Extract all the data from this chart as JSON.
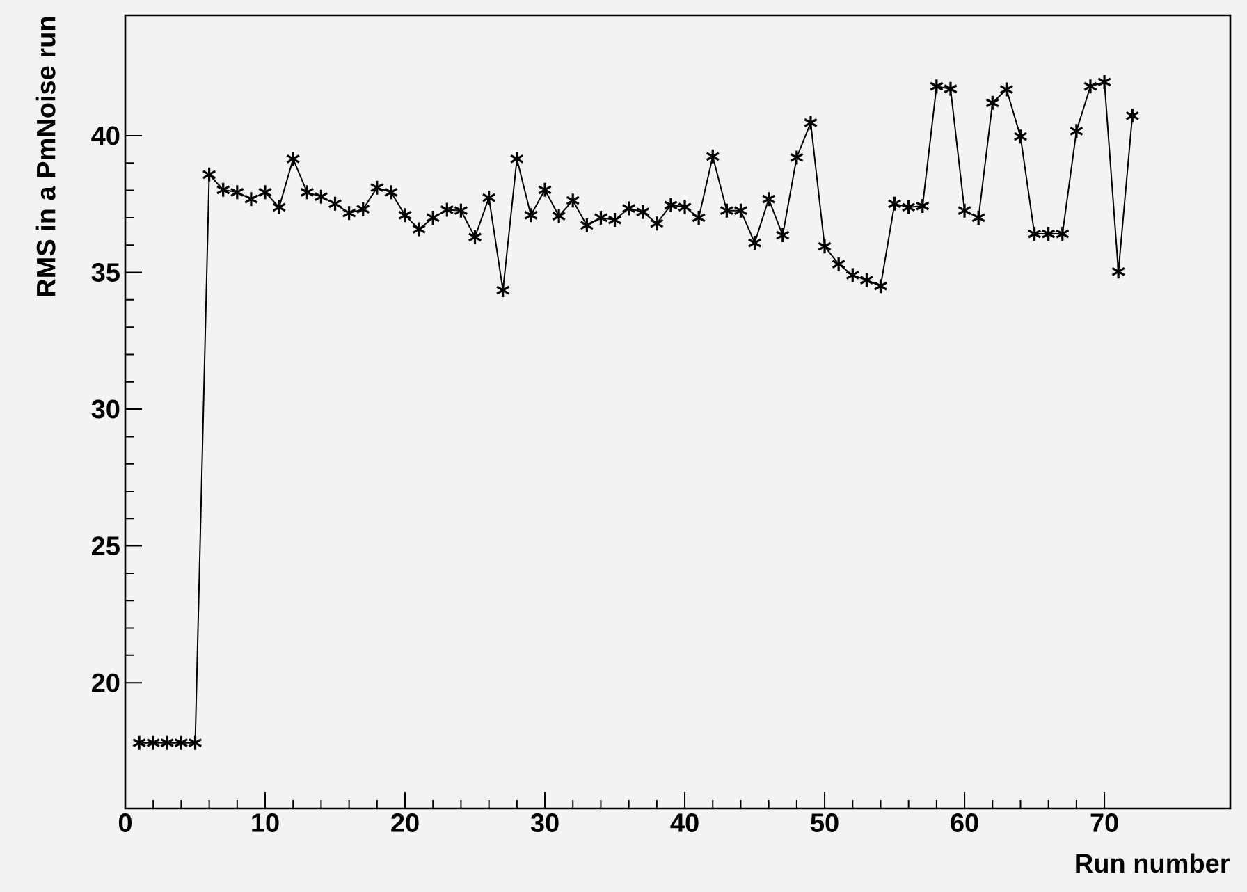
{
  "chart_data": {
    "type": "line",
    "xlabel": "Run number",
    "ylabel": "RMS in a PmNoise run",
    "x": [
      1,
      2,
      3,
      4,
      5,
      6,
      7,
      8,
      9,
      10,
      11,
      12,
      13,
      14,
      15,
      16,
      17,
      18,
      19,
      20,
      21,
      22,
      23,
      24,
      25,
      26,
      27,
      28,
      29,
      30,
      31,
      32,
      33,
      34,
      35,
      36,
      37,
      38,
      39,
      40,
      41,
      42,
      43,
      44,
      45,
      46,
      47,
      48,
      49,
      50,
      51,
      52,
      53,
      54,
      55,
      56,
      57,
      58,
      59,
      60,
      61,
      62,
      63,
      64,
      65,
      66,
      67,
      68,
      69,
      70,
      71,
      72
    ],
    "values": [
      17.8,
      17.8,
      17.8,
      17.8,
      17.8,
      38.58,
      38.02,
      37.93,
      37.68,
      37.93,
      37.38,
      39.15,
      37.93,
      37.77,
      37.51,
      37.17,
      37.31,
      38.1,
      37.93,
      37.09,
      36.58,
      37.0,
      37.29,
      37.26,
      36.29,
      37.73,
      34.35,
      39.15,
      37.09,
      38.02,
      37.06,
      37.63,
      36.72,
      37.0,
      36.92,
      37.34,
      37.21,
      36.79,
      37.46,
      37.39,
      37.0,
      39.24,
      37.26,
      37.26,
      36.08,
      37.68,
      36.36,
      39.2,
      40.47,
      35.95,
      35.3,
      34.9,
      34.72,
      34.5,
      37.51,
      37.38,
      37.43,
      41.8,
      41.71,
      37.26,
      37.0,
      41.2,
      41.69,
      39.97,
      36.41,
      36.41,
      36.41,
      40.17,
      41.8,
      41.96,
      35.03,
      40.73
    ],
    "color": "#000000",
    "marker": "cross",
    "line_style": "solid",
    "xlim": [
      0,
      79
    ],
    "ylim": [
      15.4,
      44.4
    ],
    "xticks": [
      0,
      10,
      20,
      30,
      40,
      50,
      60,
      70
    ],
    "yticks": [
      20,
      25,
      30,
      35,
      40
    ]
  }
}
